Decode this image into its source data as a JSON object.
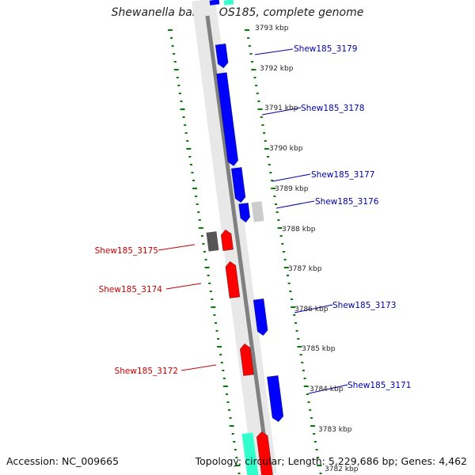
{
  "title": "Shewanella baltica OS185, complete genome",
  "footer": {
    "accession": "Accession: NC_009665",
    "topology": "Topology: circular; Length: 5,229,686 bp; Genes: 4,462"
  },
  "colors": {
    "forward_gene": "#0000ff",
    "reverse_gene": "#ff0000",
    "forward_label": "#0000aa",
    "reverse_label": "#cc0000",
    "tick": "#008000",
    "backbone": "#808080",
    "rna_feature": "#33ffcc",
    "pseudo_forward": "#cccccc",
    "pseudo_reverse": "#555555"
  },
  "ticks": [
    "3793 kbp",
    "3792 kbp",
    "3791 kbp",
    "3790 kbp",
    "3789 kbp",
    "3788 kbp",
    "3787 kbp",
    "3786 kbp",
    "3785 kbp",
    "3784 kbp",
    "3783 kbp",
    "3782 kbp"
  ],
  "genes": [
    {
      "label": "Shew185_3179",
      "strand": "forward"
    },
    {
      "label": "Shew185_3178",
      "strand": "forward"
    },
    {
      "label": "Shew185_3177",
      "strand": "forward"
    },
    {
      "label": "Shew185_3176",
      "strand": "forward"
    },
    {
      "label": "Shew185_3175",
      "strand": "reverse"
    },
    {
      "label": "Shew185_3174",
      "strand": "reverse"
    },
    {
      "label": "Shew185_3173",
      "strand": "forward"
    },
    {
      "label": "Shew185_3172",
      "strand": "reverse"
    },
    {
      "label": "Shew185_3171",
      "strand": "forward"
    }
  ]
}
